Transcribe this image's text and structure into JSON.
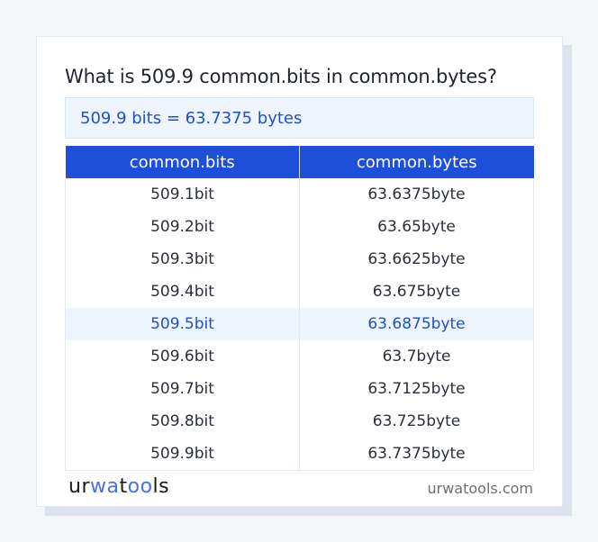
{
  "title": "What is 509.9 common.bits in common.bytes?",
  "result": "509.9 bits = 63.7375 bytes",
  "table": {
    "headers": [
      "common.bits",
      "common.bytes"
    ],
    "rows": [
      [
        "509.1bit",
        "63.6375byte"
      ],
      [
        "509.2bit",
        "63.65byte"
      ],
      [
        "509.3bit",
        "63.6625byte"
      ],
      [
        "509.4bit",
        "63.675byte"
      ],
      [
        "509.5bit",
        "63.6875byte"
      ],
      [
        "509.6bit",
        "63.7byte"
      ],
      [
        "509.7bit",
        "63.7125byte"
      ],
      [
        "509.8bit",
        "63.725byte"
      ],
      [
        "509.9bit",
        "63.7375byte"
      ]
    ],
    "highlighted_row": 4
  },
  "footer": {
    "logo": "urwatools",
    "site": "urwatools.com"
  },
  "colors": {
    "accent": "#1d4fd8",
    "highlight_bg": "#eef5fe"
  }
}
